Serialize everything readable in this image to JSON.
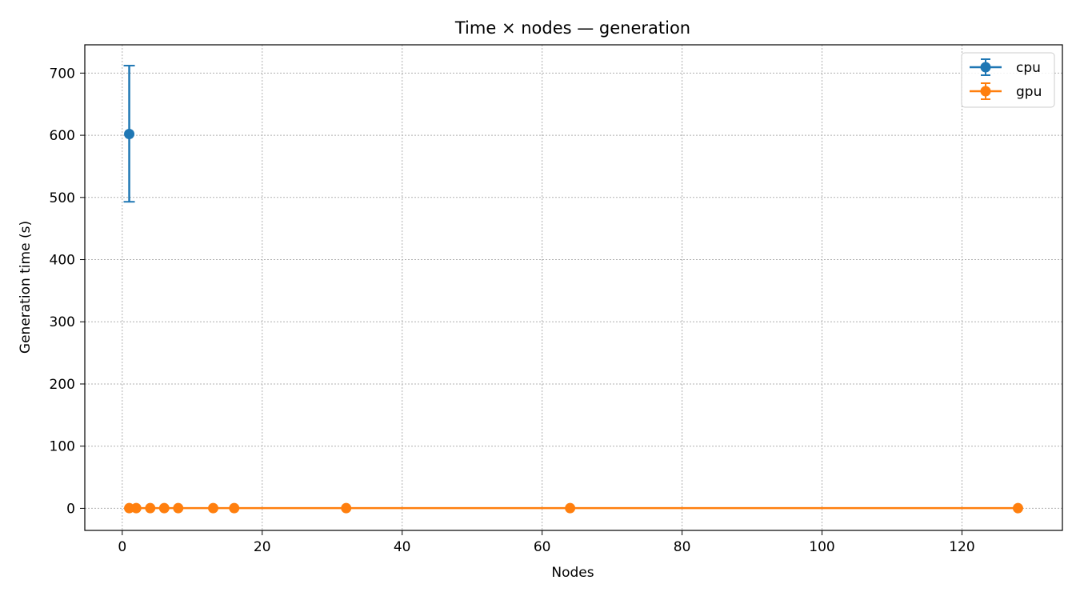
{
  "chart_data": {
    "type": "line",
    "title": "Time × nodes — generation",
    "xlabel": "Nodes",
    "ylabel": "Generation time (s)",
    "xlim": [
      -5.35,
      134.35
    ],
    "ylim": [
      -35.5,
      745.5
    ],
    "xticks": [
      0,
      20,
      40,
      60,
      80,
      100,
      120
    ],
    "yticks": [
      0,
      100,
      200,
      300,
      400,
      500,
      600,
      700
    ],
    "grid": true,
    "legend_position": "upper right",
    "series": [
      {
        "name": "cpu",
        "color": "#1f77b4",
        "marker": "circle",
        "errorbars": true,
        "points": [
          {
            "x": 1,
            "y": 602,
            "err_low": 493,
            "err_high": 712
          }
        ]
      },
      {
        "name": "gpu",
        "color": "#ff7f0e",
        "marker": "circle",
        "errorbars": true,
        "points": [
          {
            "x": 1,
            "y": 0.3
          },
          {
            "x": 2,
            "y": 0.3
          },
          {
            "x": 4,
            "y": 0.3
          },
          {
            "x": 6,
            "y": 0.3
          },
          {
            "x": 8,
            "y": 0.3
          },
          {
            "x": 13,
            "y": 0.3
          },
          {
            "x": 16,
            "y": 0.3
          },
          {
            "x": 32,
            "y": 0.3
          },
          {
            "x": 64,
            "y": 0.3
          },
          {
            "x": 128,
            "y": 0.3
          }
        ]
      }
    ]
  }
}
